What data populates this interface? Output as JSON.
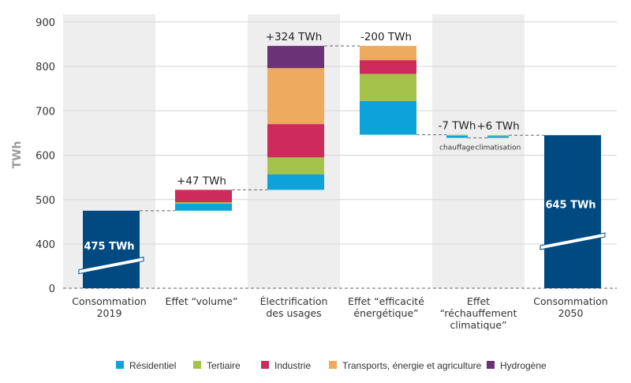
{
  "chart_data": {
    "type": "bar",
    "subtype": "waterfall-stacked",
    "ylabel": "TWh",
    "yticks": [
      0,
      400,
      500,
      600,
      700,
      800,
      900
    ],
    "ylim": [
      0,
      900
    ],
    "axis_break": true,
    "grid": true,
    "legend_position": "bottom",
    "colors": {
      "Résidentiel": "#0ea3d8",
      "Tertiaire": "#a5c24a",
      "Industrie": "#cc2b5c",
      "Transports, énergie et agriculture": "#eeaa5f",
      "Hydrogène": "#6a3277",
      "total": "#004a81",
      "band": "#efeeef"
    },
    "legend": [
      "Résidentiel",
      "Tertiaire",
      "Industrie",
      "Transports, énergie et agriculture",
      "Hydrogène"
    ],
    "categories": [
      {
        "label": [
          "Consommation",
          "2019"
        ],
        "kind": "total",
        "value": 475,
        "data_label": "475 TWh"
      },
      {
        "label": [
          "Effet “volume”"
        ],
        "kind": "delta",
        "start": 475,
        "data_label": "+47 TWh",
        "segments": {
          "Résidentiel": 16,
          "Tertiaire": 3,
          "Industrie": 28
        }
      },
      {
        "label": [
          "Électrification",
          "des usages"
        ],
        "kind": "delta",
        "start": 522,
        "data_label": "+324 TWh",
        "segments": {
          "Résidentiel": 35,
          "Tertiaire": 38,
          "Industrie": 75,
          "Transports, énergie et agriculture": 126,
          "Hydrogène": 50
        }
      },
      {
        "label": [
          "Effet “efficacité",
          "énergétique”"
        ],
        "kind": "delta",
        "start": 846,
        "data_label": "-200 TWh",
        "segments": {
          "Résidentiel": -76,
          "Tertiaire": -61,
          "Industrie": -31,
          "Transports, énergie et agriculture": -32
        }
      },
      {
        "label": [
          "Effet",
          "“réchauffement",
          "climatique”"
        ],
        "kind": "split",
        "parts": [
          {
            "sublabel": "chauffage",
            "start": 646,
            "data_label": "-7 TWh",
            "segments": {
              "Résidentiel": -5,
              "Tertiaire": -2
            }
          },
          {
            "sublabel": "climatisation",
            "start": 639,
            "data_label": "+6 TWh",
            "segments": {
              "Résidentiel": 4,
              "Tertiaire": 2
            }
          }
        ]
      },
      {
        "label": [
          "Consommation",
          "2050"
        ],
        "kind": "total",
        "value": 645,
        "data_label": "645 TWh"
      }
    ]
  }
}
